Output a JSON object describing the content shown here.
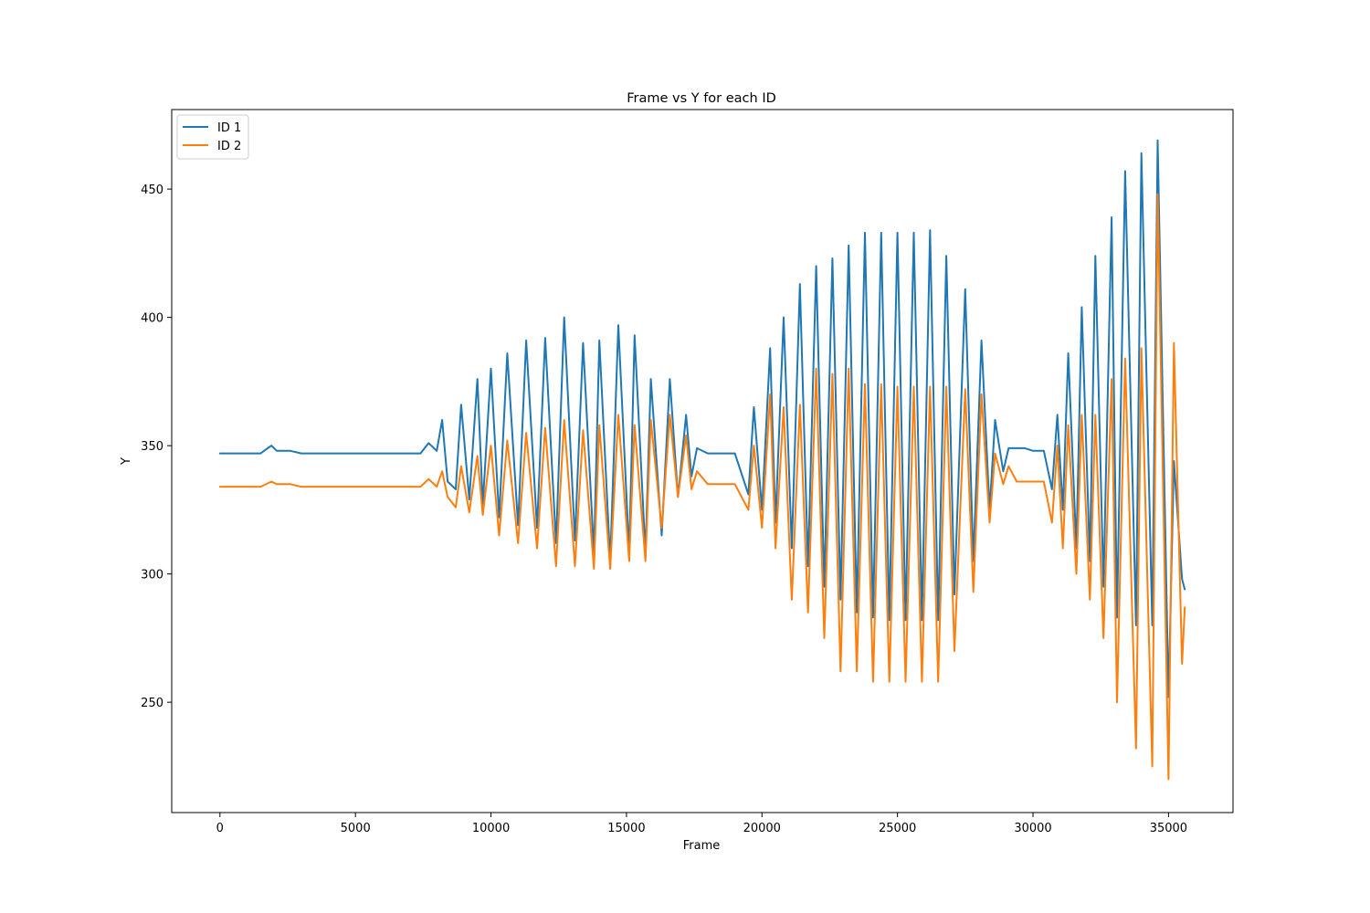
{
  "chart_data": {
    "type": "line",
    "title": "Frame vs Y for each ID",
    "xlabel": "Frame",
    "ylabel": "Y",
    "xlim": [
      -1780,
      37380
    ],
    "ylim": [
      207,
      481
    ],
    "xticks": [
      0,
      5000,
      10000,
      15000,
      20000,
      25000,
      30000,
      35000
    ],
    "xtick_labels": [
      "0",
      "5000",
      "10000",
      "15000",
      "20000",
      "25000",
      "30000",
      "35000"
    ],
    "yticks": [
      250,
      300,
      350,
      400,
      450
    ],
    "ytick_labels": [
      "250",
      "300",
      "350",
      "400",
      "450"
    ],
    "grid": false,
    "legend": "top-left",
    "series": [
      {
        "name": "ID 1",
        "color": "#1f77b4",
        "x": [
          0,
          1500,
          1900,
          2100,
          2600,
          3000,
          7400,
          7700,
          8000,
          8200,
          8400,
          8700,
          8900,
          9200,
          9500,
          9700,
          10000,
          10300,
          10600,
          11000,
          11300,
          11700,
          12000,
          12400,
          12700,
          13100,
          13400,
          13800,
          14000,
          14400,
          14700,
          15100,
          15300,
          15700,
          15900,
          16300,
          16600,
          16900,
          17200,
          17400,
          17600,
          18000,
          19000,
          19500,
          19700,
          20000,
          20300,
          20500,
          20800,
          21100,
          21400,
          21700,
          22000,
          22300,
          22600,
          22900,
          23200,
          23500,
          23800,
          24100,
          24400,
          24700,
          25000,
          25300,
          25600,
          25900,
          26200,
          26500,
          26800,
          27100,
          27500,
          27800,
          28100,
          28400,
          28600,
          28900,
          29100,
          29400,
          29700,
          30000,
          30400,
          30700,
          30900,
          31100,
          31300,
          31600,
          31800,
          32100,
          32300,
          32600,
          32900,
          33100,
          33400,
          33800,
          34000,
          34400,
          34600,
          35000,
          35200,
          35500,
          35600
        ],
        "y": [
          347,
          347,
          350,
          348,
          348,
          347,
          347,
          351,
          348,
          360,
          336,
          333,
          366,
          329,
          376,
          327,
          380,
          322,
          386,
          319,
          391,
          318,
          392,
          312,
          400,
          313,
          390,
          308,
          391,
          305,
          397,
          308,
          393,
          308,
          376,
          315,
          376,
          330,
          362,
          338,
          349,
          347,
          347,
          331,
          365,
          325,
          388,
          320,
          400,
          310,
          413,
          303,
          420,
          295,
          423,
          290,
          428,
          285,
          433,
          283,
          433,
          282,
          433,
          282,
          433,
          282,
          434,
          282,
          424,
          292,
          411,
          305,
          391,
          325,
          360,
          340,
          349,
          349,
          349,
          348,
          348,
          333,
          362,
          325,
          386,
          310,
          404,
          305,
          424,
          295,
          439,
          283,
          457,
          280,
          464,
          280,
          469,
          252,
          344,
          298,
          294
        ]
      },
      {
        "name": "ID 2",
        "color": "#ff7f0e",
        "x": [
          0,
          1500,
          1900,
          2100,
          2600,
          3000,
          7400,
          7700,
          8000,
          8200,
          8400,
          8700,
          8900,
          9200,
          9500,
          9700,
          10000,
          10300,
          10600,
          11000,
          11300,
          11700,
          12000,
          12400,
          12700,
          13100,
          13400,
          13800,
          14000,
          14400,
          14700,
          15100,
          15300,
          15700,
          15900,
          16300,
          16600,
          16900,
          17200,
          17400,
          17600,
          18000,
          19000,
          19500,
          19700,
          20000,
          20300,
          20500,
          20800,
          21100,
          21400,
          21700,
          22000,
          22300,
          22600,
          22900,
          23200,
          23500,
          23800,
          24100,
          24400,
          24700,
          25000,
          25300,
          25600,
          25900,
          26200,
          26500,
          26800,
          27100,
          27500,
          27800,
          28100,
          28400,
          28600,
          28900,
          29100,
          29400,
          29700,
          30000,
          30400,
          30700,
          30900,
          31100,
          31300,
          31600,
          31800,
          32100,
          32300,
          32600,
          32900,
          33100,
          33400,
          33800,
          34000,
          34400,
          34600,
          35000,
          35200,
          35500,
          35600
        ],
        "y": [
          334,
          334,
          336,
          335,
          335,
          334,
          334,
          337,
          334,
          340,
          330,
          326,
          342,
          324,
          346,
          323,
          350,
          315,
          352,
          312,
          355,
          310,
          357,
          303,
          360,
          303,
          356,
          302,
          358,
          302,
          362,
          305,
          358,
          305,
          360,
          318,
          362,
          330,
          354,
          333,
          340,
          335,
          335,
          325,
          350,
          318,
          370,
          310,
          365,
          290,
          366,
          285,
          380,
          275,
          378,
          262,
          380,
          262,
          374,
          258,
          374,
          258,
          373,
          258,
          373,
          258,
          373,
          258,
          373,
          270,
          372,
          293,
          370,
          320,
          347,
          335,
          342,
          336,
          336,
          336,
          336,
          320,
          350,
          310,
          358,
          300,
          362,
          290,
          362,
          275,
          376,
          250,
          384,
          232,
          388,
          225,
          448,
          220,
          390,
          265,
          287
        ]
      }
    ]
  }
}
